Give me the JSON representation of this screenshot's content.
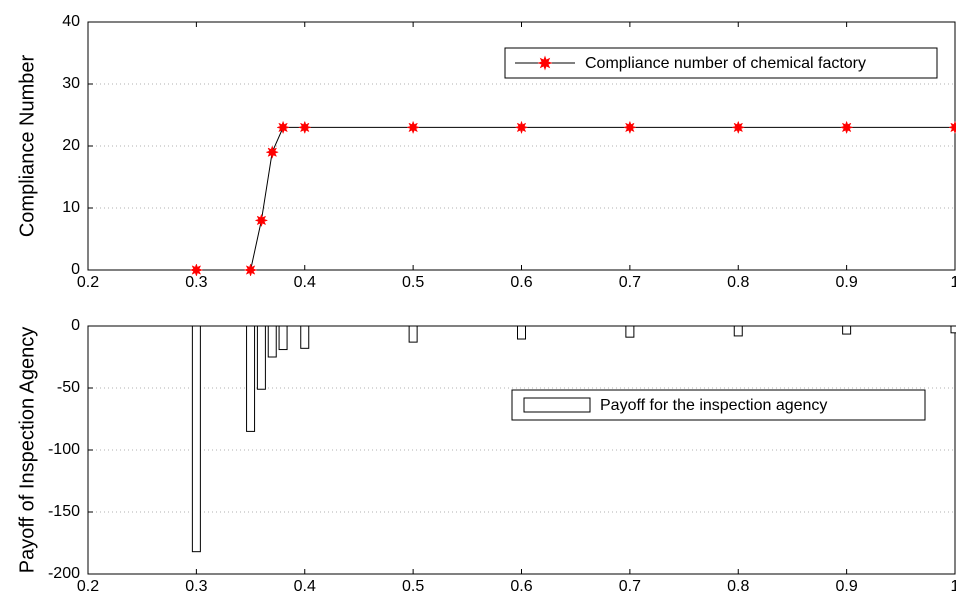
{
  "chart_data": [
    {
      "type": "line",
      "ylabel": "Compliance Number",
      "x": [
        0.3,
        0.35,
        0.36,
        0.37,
        0.38,
        0.4,
        0.5,
        0.6,
        0.7,
        0.8,
        0.9,
        1
      ],
      "series": [
        {
          "name": "Compliance number of chemical factory",
          "color": "#ff0000",
          "values": [
            0,
            0,
            8,
            19,
            23,
            23,
            23,
            23,
            23,
            23,
            23,
            23
          ]
        }
      ],
      "xlim": [
        0.2,
        1
      ],
      "ylim": [
        0,
        40
      ],
      "xticks": [
        0.2,
        0.3,
        0.4,
        0.5,
        0.6,
        0.7,
        0.8,
        0.9,
        1
      ],
      "yticks": [
        0,
        10,
        20,
        30,
        40
      ],
      "grid": "y",
      "legend": "upper right"
    },
    {
      "type": "bar",
      "ylabel": "Payoff of Inspection Agency",
      "x": [
        0.3,
        0.35,
        0.36,
        0.37,
        0.38,
        0.4,
        0.5,
        0.6,
        0.7,
        0.8,
        0.9,
        1
      ],
      "series": [
        {
          "name": "Payoff for the inspection agency",
          "color": "#ffffff",
          "values": [
            -182,
            -85,
            -51,
            -25,
            -19,
            -18,
            -13,
            -10.5,
            -9,
            -8,
            -6.5,
            -5.5
          ]
        }
      ],
      "xlim": [
        0.2,
        1
      ],
      "ylim": [
        -200,
        0
      ],
      "xticks": [
        0.2,
        0.3,
        0.4,
        0.5,
        0.6,
        0.7,
        0.8,
        0.9,
        1
      ],
      "yticks": [
        -200,
        -150,
        -100,
        -50,
        0
      ],
      "grid": "y",
      "legend": "center right"
    }
  ]
}
